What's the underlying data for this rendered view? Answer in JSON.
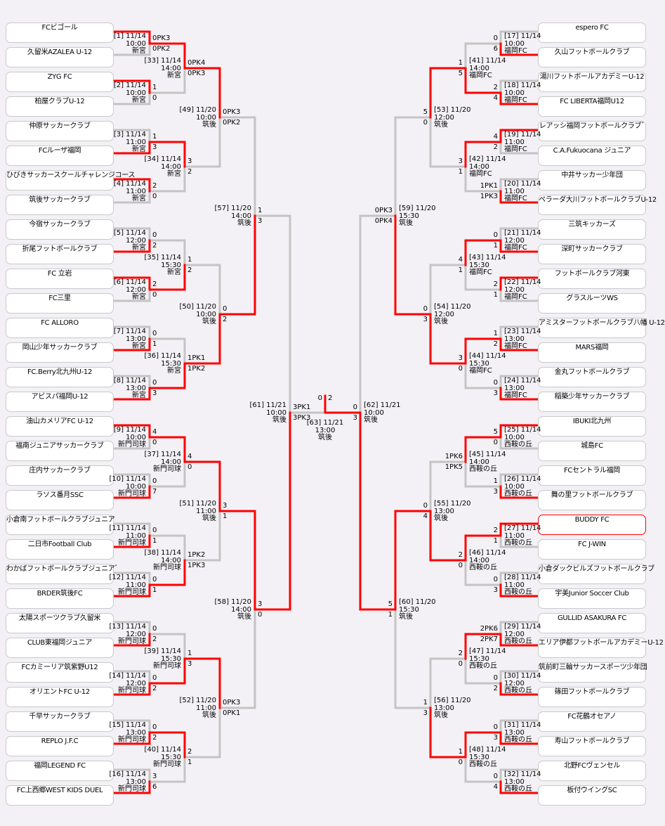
{
  "colors": {
    "winner_line": "#ff0000",
    "line": "#c4c4c4",
    "highlight_border": "#ff0000",
    "background": "#f3f1f5"
  },
  "highlight_team": "BUDDY FC",
  "teams_left": [
    {
      "name": "FCビゴール"
    },
    {
      "name": "久留米AZALEA U-12"
    },
    {
      "name": "ZYG FC"
    },
    {
      "name": "柏屋クラブU-12"
    },
    {
      "name": "仲原サッカークラブ"
    },
    {
      "name": "FCルーザ福岡"
    },
    {
      "name": "ひびきサッカースクールチャレンジコース"
    },
    {
      "name": "筑後サッカークラブ"
    },
    {
      "name": "今宿サッカークラブ"
    },
    {
      "name": "折尾フットボールクラブ"
    },
    {
      "name": "FC 立岩"
    },
    {
      "name": "FC三里"
    },
    {
      "name": "FC ALLORO"
    },
    {
      "name": "岡山少年サッカークラブ"
    },
    {
      "name": "FC.Berry北九州U-12"
    },
    {
      "name": "アビスパ福岡U-12"
    },
    {
      "name": "油山カメリアFC U-12"
    },
    {
      "name": "福南ジュニアサッカークラブ"
    },
    {
      "name": "庄内サッカークラブ"
    },
    {
      "name": "ラソス番月SSC"
    },
    {
      "name": "小倉南フットボールクラブジュニア"
    },
    {
      "name": "二日市Football Club"
    },
    {
      "name": "わかばフットボールクラブジュニアﾞ"
    },
    {
      "name": "BRDER筑後FC"
    },
    {
      "name": "太陽スポーツクラブ久留米"
    },
    {
      "name": "CLUB東福岡ジュニア"
    },
    {
      "name": "FCカミーリア筑紫野U12"
    },
    {
      "name": "オリエントFC U-12"
    },
    {
      "name": "千早サッカークラブ"
    },
    {
      "name": "REPLO J.F.C"
    },
    {
      "name": "福岡LEGEND FC"
    },
    {
      "name": "FC上西郷WEST KIDS DUEL"
    }
  ],
  "teams_right": [
    {
      "name": "espero FC"
    },
    {
      "name": "久山フットボールクラブ"
    },
    {
      "name": "湯川フットボールアカデミーU-12"
    },
    {
      "name": "FC LIBERTA福岡U12"
    },
    {
      "name": "レアッシ福岡フットボールクラブﾞ"
    },
    {
      "name": "C.A.Fukuocana ジュニア"
    },
    {
      "name": "中井サッカー少年団"
    },
    {
      "name": "ペラーダ大川フットボールクラブU-12"
    },
    {
      "name": "三筑キッカーズ"
    },
    {
      "name": "深町サッカークラブ"
    },
    {
      "name": "フットボールクラブ河東"
    },
    {
      "name": "グラスルーツWS"
    },
    {
      "name": "アミスターフットボールクラブ八幡 U-12"
    },
    {
      "name": "MARS福岡"
    },
    {
      "name": "金丸フットボールクラブ"
    },
    {
      "name": "稲築少年サッカークラブ"
    },
    {
      "name": "IBUKI北九州"
    },
    {
      "name": "城島FC"
    },
    {
      "name": "FCセントラル福岡"
    },
    {
      "name": "舞の里フットボールクラブ"
    },
    {
      "name": "BUDDY FC"
    },
    {
      "name": "FC J-WIN"
    },
    {
      "name": "小倉ダックビルズフットボールクラブ"
    },
    {
      "name": "宇美Junior Soccer Club"
    },
    {
      "name": "GULLID ASAKURA FC"
    },
    {
      "name": "エリア伊都フットボールアカデミーU-12"
    },
    {
      "name": "筑前町三輪サッカースポーツ少年団"
    },
    {
      "name": "篠田フットボールクラブ"
    },
    {
      "name": "FC花鶴オセアノ"
    },
    {
      "name": "寿山フットボールクラブ"
    },
    {
      "name": "北野FCヴェンセル"
    },
    {
      "name": "板付ウイングSC"
    }
  ],
  "left": {
    "rounds": [
      [
        {
          "code": "[1]",
          "date": "11/14",
          "time": "10:00",
          "venue": "新宮",
          "top": "0PK3",
          "bottom": "0PK2",
          "winner": "top"
        },
        {
          "code": "[2]",
          "date": "11/14",
          "time": "10:00",
          "venue": "新宮",
          "top": "1",
          "bottom": "0",
          "winner": "top"
        },
        {
          "code": "[3]",
          "date": "11/14",
          "time": "11:00",
          "venue": "新宮",
          "top": "1",
          "bottom": "3",
          "winner": "bottom"
        },
        {
          "code": "[4]",
          "date": "11/14",
          "time": "11:00",
          "venue": "新宮",
          "top": "2",
          "bottom": "0",
          "winner": "top"
        },
        {
          "code": "[5]",
          "date": "11/14",
          "time": "12:00",
          "venue": "新宮",
          "top": "0",
          "bottom": "2",
          "winner": "bottom"
        },
        {
          "code": "[6]",
          "date": "11/14",
          "time": "12:00",
          "venue": "新宮",
          "top": "2",
          "bottom": "0",
          "winner": "top"
        },
        {
          "code": "[7]",
          "date": "11/14",
          "time": "13:00",
          "venue": "新宮",
          "top": "0",
          "bottom": "1",
          "winner": "bottom"
        },
        {
          "code": "[8]",
          "date": "11/14",
          "time": "13:00",
          "venue": "新宮",
          "top": "0",
          "bottom": "3",
          "winner": "bottom"
        },
        {
          "code": "[9]",
          "date": "11/14",
          "time": "10:00",
          "venue": "新門司球",
          "top": "4",
          "bottom": "0",
          "winner": "top"
        },
        {
          "code": "[10]",
          "date": "11/14",
          "time": "10:00",
          "venue": "新門司球",
          "top": "0",
          "bottom": "7",
          "winner": "bottom"
        },
        {
          "code": "[11]",
          "date": "11/14",
          "time": "11:00",
          "venue": "新門司球",
          "top": "0",
          "bottom": "1",
          "winner": "bottom"
        },
        {
          "code": "[12]",
          "date": "11/14",
          "time": "11:00",
          "venue": "新門司球",
          "top": "0",
          "bottom": "1",
          "winner": "bottom"
        },
        {
          "code": "[13]",
          "date": "11/14",
          "time": "12:00",
          "venue": "新門司球",
          "top": "0",
          "bottom": "2",
          "winner": "bottom"
        },
        {
          "code": "[14]",
          "date": "11/14",
          "time": "12:00",
          "venue": "新門司球",
          "top": "0",
          "bottom": "2",
          "winner": "bottom"
        },
        {
          "code": "[15]",
          "date": "11/14",
          "time": "13:00",
          "venue": "新門司球",
          "top": "0",
          "bottom": "2",
          "winner": "bottom"
        },
        {
          "code": "[16]",
          "date": "11/14",
          "time": "13:00",
          "venue": "新門司球",
          "top": "3",
          "bottom": "6",
          "winner": "bottom"
        }
      ],
      [
        {
          "code": "[33]",
          "date": "11/14",
          "time": "14:00",
          "venue": "新宮",
          "top": "0PK4",
          "bottom": "0PK3",
          "winner": "top"
        },
        {
          "code": "[34]",
          "date": "11/14",
          "time": "14:00",
          "venue": "新宮",
          "top": "3",
          "bottom": "2",
          "winner": "top"
        },
        {
          "code": "[35]",
          "date": "11/14",
          "time": "15:30",
          "venue": "新宮",
          "top": "1",
          "bottom": "2",
          "winner": "bottom"
        },
        {
          "code": "[36]",
          "date": "11/14",
          "time": "15:30",
          "venue": "新宮",
          "top": "1PK1",
          "bottom": "1PK2",
          "winner": "bottom"
        },
        {
          "code": "[37]",
          "date": "11/14",
          "time": "14:00",
          "venue": "新門司球",
          "top": "4",
          "bottom": "0",
          "winner": "top"
        },
        {
          "code": "[38]",
          "date": "11/14",
          "time": "14:00",
          "venue": "新門司球",
          "top": "1PK2",
          "bottom": "1PK3",
          "winner": "bottom"
        },
        {
          "code": "[39]",
          "date": "11/14",
          "time": "15:30",
          "venue": "新門司球",
          "top": "1",
          "bottom": "3",
          "winner": "bottom"
        },
        {
          "code": "[40]",
          "date": "11/14",
          "time": "15:30",
          "venue": "新門司球",
          "top": "2",
          "bottom": "1",
          "winner": "top"
        }
      ],
      [
        {
          "code": "[49]",
          "date": "11/20",
          "time": "10:00",
          "venue": "筑後",
          "top": "0PK3",
          "bottom": "0PK2",
          "winner": "top"
        },
        {
          "code": "[50]",
          "date": "11/20",
          "time": "10:00",
          "venue": "筑後",
          "top": "0",
          "bottom": "2",
          "winner": "bottom"
        },
        {
          "code": "[51]",
          "date": "11/20",
          "time": "11:00",
          "venue": "筑後",
          "top": "3",
          "bottom": "1",
          "winner": "top"
        },
        {
          "code": "[52]",
          "date": "11/20",
          "time": "11:00",
          "venue": "筑後",
          "top": "0PK3",
          "bottom": "0PK1",
          "winner": "top"
        }
      ],
      [
        {
          "code": "[57]",
          "date": "11/20",
          "time": "14:00",
          "venue": "筑後",
          "top": "1",
          "bottom": "3",
          "winner": "bottom"
        },
        {
          "code": "[58]",
          "date": "11/20",
          "time": "14:00",
          "venue": "筑後",
          "top": "3",
          "bottom": "0",
          "winner": "top"
        }
      ],
      [
        {
          "code": "[61]",
          "date": "11/21",
          "time": "10:00",
          "venue": "筑後",
          "top": "3PK1",
          "bottom": "3PK3",
          "winner": "bottom"
        }
      ]
    ]
  },
  "right": {
    "rounds": [
      [
        {
          "code": "[17]",
          "date": "11/14",
          "time": "10:00",
          "venue": "福岡FC",
          "top": "0",
          "bottom": "6",
          "winner": "bottom"
        },
        {
          "code": "[18]",
          "date": "11/14",
          "time": "10:00",
          "venue": "福岡FC",
          "top": "2",
          "bottom": "4",
          "winner": "bottom"
        },
        {
          "code": "[19]",
          "date": "11/14",
          "time": "11:00",
          "venue": "福岡FC",
          "top": "4",
          "bottom": "2",
          "winner": "top"
        },
        {
          "code": "[20]",
          "date": "11/14",
          "time": "11:00",
          "venue": "福岡FC",
          "top": "1PK1",
          "bottom": "1PK3",
          "winner": "bottom"
        },
        {
          "code": "[21]",
          "date": "11/14",
          "time": "12:00",
          "venue": "福岡FC",
          "top": "0",
          "bottom": "1",
          "winner": "bottom"
        },
        {
          "code": "[22]",
          "date": "11/14",
          "time": "12:00",
          "venue": "福岡FC",
          "top": "2",
          "bottom": "1",
          "winner": "top"
        },
        {
          "code": "[23]",
          "date": "11/14",
          "time": "13:00",
          "venue": "福岡FC",
          "top": "1",
          "bottom": "2",
          "winner": "bottom"
        },
        {
          "code": "[24]",
          "date": "11/14",
          "time": "13:00",
          "venue": "福岡FC",
          "top": "0",
          "bottom": "3",
          "winner": "bottom"
        },
        {
          "code": "[25]",
          "date": "11/14",
          "time": "10:00",
          "venue": "西鞍の丘",
          "top": "5",
          "bottom": "0",
          "winner": "top"
        },
        {
          "code": "[26]",
          "date": "11/14",
          "time": "10:00",
          "venue": "西鞍の丘",
          "top": "1",
          "bottom": "3",
          "winner": "bottom"
        },
        {
          "code": "[27]",
          "date": "11/14",
          "time": "11:00",
          "venue": "西鞍の丘",
          "top": "2",
          "bottom": "1",
          "winner": "top"
        },
        {
          "code": "[28]",
          "date": "11/14",
          "time": "11:00",
          "venue": "西鞍の丘",
          "top": "0",
          "bottom": "3",
          "winner": "bottom"
        },
        {
          "code": "[29]",
          "date": "11/14",
          "time": "12:00",
          "venue": "西鞍の丘",
          "top": "2PK6",
          "bottom": "2PK7",
          "winner": "bottom"
        },
        {
          "code": "[30]",
          "date": "11/14",
          "time": "12:00",
          "venue": "西鞍の丘",
          "top": "0",
          "bottom": "2",
          "winner": "bottom"
        },
        {
          "code": "[31]",
          "date": "11/14",
          "time": "13:00",
          "venue": "西鞍の丘",
          "top": "0",
          "bottom": "3",
          "winner": "bottom"
        },
        {
          "code": "[32]",
          "date": "11/14",
          "time": "13:00",
          "venue": "西鞍の丘",
          "top": "0",
          "bottom": "4",
          "winner": "bottom"
        }
      ],
      [
        {
          "code": "[41]",
          "date": "11/14",
          "time": "14:00",
          "venue": "福岡FC",
          "top": "1",
          "bottom": "5",
          "winner": "bottom"
        },
        {
          "code": "[42]",
          "date": "11/14",
          "time": "14:00",
          "venue": "福岡FC",
          "top": "3",
          "bottom": "1",
          "winner": "top"
        },
        {
          "code": "[43]",
          "date": "11/14",
          "time": "15:30",
          "venue": "福岡FC",
          "top": "4",
          "bottom": "1",
          "winner": "top"
        },
        {
          "code": "[44]",
          "date": "11/14",
          "time": "15:30",
          "venue": "福岡FC",
          "top": "3",
          "bottom": "0",
          "winner": "top"
        },
        {
          "code": "[45]",
          "date": "11/14",
          "time": "14:00",
          "venue": "西鞍の丘",
          "top": "1PK6",
          "bottom": "1PK5",
          "winner": "top"
        },
        {
          "code": "[46]",
          "date": "11/14",
          "time": "14:00",
          "venue": "西鞍の丘",
          "top": "2",
          "bottom": "0",
          "winner": "top"
        },
        {
          "code": "[47]",
          "date": "11/14",
          "time": "15:30",
          "venue": "西鞍の丘",
          "top": "2",
          "bottom": "0",
          "winner": "top"
        },
        {
          "code": "[48]",
          "date": "11/14",
          "time": "15:30",
          "venue": "西鞍の丘",
          "top": "1",
          "bottom": "0",
          "winner": "top"
        }
      ],
      [
        {
          "code": "[53]",
          "date": "11/20",
          "time": "12:00",
          "venue": "筑後",
          "top": "5",
          "bottom": "0",
          "winner": "top"
        },
        {
          "code": "[54]",
          "date": "11/20",
          "time": "12:00",
          "venue": "筑後",
          "top": "0",
          "bottom": "3",
          "winner": "bottom"
        },
        {
          "code": "[55]",
          "date": "11/20",
          "time": "13:00",
          "venue": "筑後",
          "top": "0",
          "bottom": "4",
          "winner": "bottom"
        },
        {
          "code": "[56]",
          "date": "11/20",
          "time": "13:00",
          "venue": "筑後",
          "top": "1",
          "bottom": "3",
          "winner": "bottom"
        }
      ],
      [
        {
          "code": "[59]",
          "date": "11/20",
          "time": "15:30",
          "venue": "筑後",
          "top": "0PK3",
          "bottom": "0PK4",
          "winner": "bottom"
        },
        {
          "code": "[60]",
          "date": "11/20",
          "time": "15:30",
          "venue": "筑後",
          "top": "5",
          "bottom": "1",
          "winner": "top"
        }
      ],
      [
        {
          "code": "[62]",
          "date": "11/21",
          "time": "10:00",
          "venue": "筑後",
          "top": "0",
          "bottom": "3",
          "winner": "bottom"
        }
      ]
    ]
  },
  "final": {
    "code": "[63]",
    "date": "11/21",
    "time": "13:00",
    "venue": "筑後",
    "left": "0",
    "right": "2",
    "winner": "right"
  }
}
